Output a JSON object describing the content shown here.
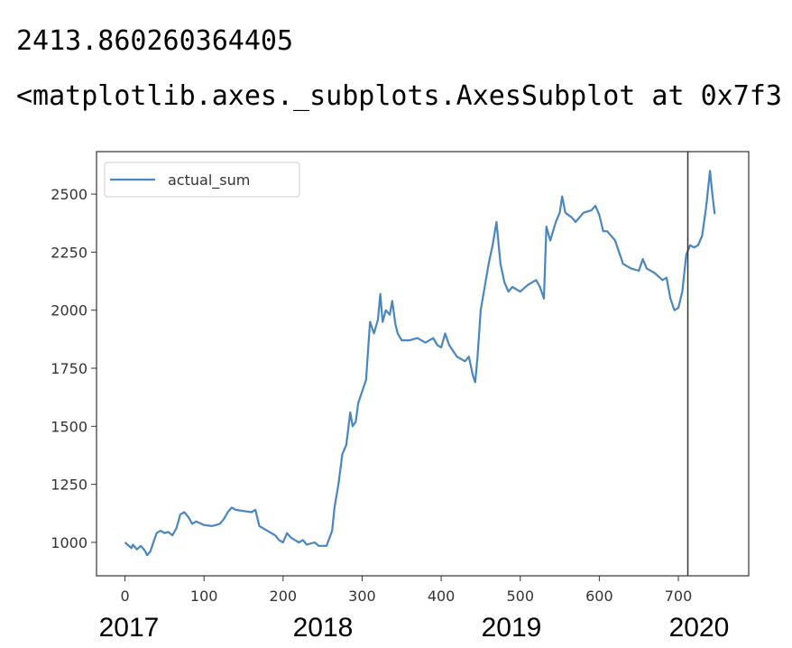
{
  "output_text": "2413.860260364405",
  "repr_text": "<matplotlib.axes._subplots.AxesSubplot at 0x7f3",
  "chart_data": {
    "type": "line",
    "x": [
      0,
      5,
      8,
      10,
      15,
      20,
      25,
      28,
      32,
      35,
      40,
      45,
      50,
      55,
      60,
      65,
      70,
      75,
      80,
      85,
      90,
      100,
      110,
      120,
      125,
      130,
      135,
      140,
      150,
      160,
      165,
      170,
      180,
      190,
      195,
      200,
      205,
      210,
      215,
      220,
      225,
      230,
      240,
      245,
      255,
      262,
      265,
      270,
      275,
      280,
      285,
      288,
      292,
      295,
      300,
      305,
      310,
      315,
      320,
      323,
      326,
      330,
      335,
      338,
      342,
      345,
      350,
      360,
      370,
      380,
      390,
      395,
      400,
      405,
      410,
      420,
      425,
      430,
      435,
      440,
      443,
      446,
      450,
      455,
      460,
      465,
      470,
      475,
      480,
      485,
      490,
      500,
      510,
      520,
      525,
      530,
      533,
      538,
      545,
      550,
      553,
      557,
      565,
      570,
      575,
      580,
      590,
      595,
      600,
      605,
      610,
      620,
      625,
      630,
      640,
      650,
      655,
      660,
      670,
      680,
      685,
      690,
      695,
      700,
      705,
      710,
      715,
      720,
      725,
      730,
      735,
      740,
      743,
      746
    ],
    "series": [
      {
        "name": "actual_sum",
        "color": "#4a86be",
        "values": [
          1000,
          985,
          975,
          990,
          970,
          985,
          965,
          945,
          960,
          990,
          1040,
          1050,
          1040,
          1045,
          1030,
          1060,
          1120,
          1130,
          1110,
          1080,
          1090,
          1075,
          1070,
          1080,
          1100,
          1130,
          1150,
          1140,
          1135,
          1130,
          1140,
          1070,
          1050,
          1030,
          1010,
          1000,
          1040,
          1020,
          1010,
          1000,
          1010,
          990,
          1000,
          985,
          985,
          1050,
          1150,
          1250,
          1380,
          1420,
          1560,
          1500,
          1520,
          1600,
          1650,
          1700,
          1950,
          1900,
          1960,
          2070,
          1950,
          2000,
          1980,
          2040,
          1940,
          1900,
          1870,
          1870,
          1880,
          1860,
          1880,
          1850,
          1840,
          1900,
          1850,
          1800,
          1790,
          1780,
          1800,
          1720,
          1690,
          1800,
          2000,
          2100,
          2200,
          2280,
          2380,
          2200,
          2120,
          2080,
          2100,
          2080,
          2110,
          2130,
          2100,
          2050,
          2360,
          2300,
          2380,
          2420,
          2490,
          2420,
          2400,
          2380,
          2400,
          2420,
          2430,
          2450,
          2410,
          2340,
          2340,
          2300,
          2250,
          2200,
          2180,
          2170,
          2220,
          2180,
          2160,
          2130,
          2140,
          2050,
          2000,
          2010,
          2080,
          2240,
          2280,
          2270,
          2280,
          2320,
          2440,
          2600,
          2500,
          2414
        ]
      }
    ],
    "xlim": [
      -36,
      789
    ],
    "ylim": [
      856,
      2683
    ],
    "xticks": [
      0,
      100,
      200,
      300,
      400,
      500,
      600,
      700
    ],
    "yticks": [
      1000,
      1250,
      1500,
      1750,
      2000,
      2250,
      2500
    ],
    "legend": "upper left",
    "vline": 712
  },
  "year_labels": [
    "2017",
    "2018",
    "2019",
    "2020"
  ]
}
